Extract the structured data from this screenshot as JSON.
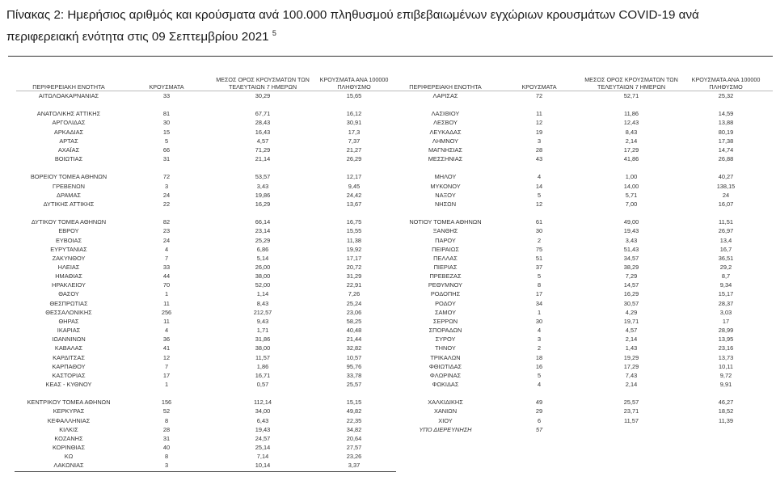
{
  "title": {
    "text": "Πίνακας 2:  Ημερήσιος αριθμός και κρούσματα ανά 100.000 πληθυσμού επιβεβαιωμένων εγχώριων κρουσμάτων COVID-19 ανά περιφερειακή ενότητα στις 09 Σεπτεμβρίου 2021",
    "footnote": "5"
  },
  "table": {
    "headers": [
      "ΠΕΡΙΦΕΡΕΙΑΚΗ ΕΝΟΤΗΤΑ",
      "ΚΡΟΥΣΜΑΤΑ",
      "ΜΕΣΟΣ ΟΡΟΣ ΚΡΟΥΣΜΑΤΩΝ ΤΩΝ ΤΕΛΕΥΤΑΙΩΝ 7 ΗΜΕΡΩΝ",
      "ΚΡΟΥΣΜΑΤΑ ΑΝΑ 100000 ΠΛΗΘΥΣΜΟ"
    ],
    "left": [
      [
        "ΑΙΤΩΛΟΑΚΑΡΝΑΝΙΑΣ",
        "33",
        "30,29",
        "15,65"
      ],
      [],
      [
        "ΑΝΑΤΟΛΙΚΗΣ ΑΤΤΙΚΗΣ",
        "81",
        "67,71",
        "16,12"
      ],
      [
        "ΑΡΓΟΛΙΔΑΣ",
        "30",
        "28,43",
        "30,91"
      ],
      [
        "ΑΡΚΑΔΙΑΣ",
        "15",
        "16,43",
        "17,3"
      ],
      [
        "ΑΡΤΑΣ",
        "5",
        "4,57",
        "7,37"
      ],
      [
        "ΑΧΑΪΑΣ",
        "66",
        "71,29",
        "21,27"
      ],
      [
        "ΒΟΙΩΤΙΑΣ",
        "31",
        "21,14",
        "26,29"
      ],
      [],
      [
        "ΒΟΡΕΙΟΥ ΤΟΜΕΑ ΑΘΗΝΩΝ",
        "72",
        "53,57",
        "12,17"
      ],
      [
        "ΓΡΕΒΕΝΩΝ",
        "3",
        "3,43",
        "9,45"
      ],
      [
        "ΔΡΑΜΑΣ",
        "24",
        "19,86",
        "24,42"
      ],
      [
        "ΔΥΤΙΚΗΣ ΑΤΤΙΚΗΣ",
        "22",
        "16,29",
        "13,67"
      ],
      [],
      [
        "ΔΥΤΙΚΟΥ ΤΟΜΕΑ ΑΘΗΝΩΝ",
        "82",
        "66,14",
        "16,75"
      ],
      [
        "ΕΒΡΟΥ",
        "23",
        "23,14",
        "15,55"
      ],
      [
        "ΕΥΒΟΙΑΣ",
        "24",
        "25,29",
        "11,38"
      ],
      [
        "ΕΥΡΥΤΑΝΙΑΣ",
        "4",
        "6,86",
        "19,92"
      ],
      [
        "ΖΑΚΥΝΘΟΥ",
        "7",
        "5,14",
        "17,17"
      ],
      [
        "ΗΛΕΙΑΣ",
        "33",
        "26,00",
        "20,72"
      ],
      [
        "ΗΜΑΘΙΑΣ",
        "44",
        "38,00",
        "31,29"
      ],
      [
        "ΗΡΑΚΛΕΙΟΥ",
        "70",
        "52,00",
        "22,91"
      ],
      [
        "ΘΑΣΟΥ",
        "1",
        "1,14",
        "7,26"
      ],
      [
        "ΘΕΣΠΡΩΤΙΑΣ",
        "11",
        "8,43",
        "25,24"
      ],
      [
        "ΘΕΣΣΑΛΟΝΙΚΗΣ",
        "256",
        "212,57",
        "23,06"
      ],
      [
        "ΘΗΡΑΣ",
        "11",
        "9,43",
        "58,25"
      ],
      [
        "ΙΚΑΡΙΑΣ",
        "4",
        "1,71",
        "40,48"
      ],
      [
        "ΙΩΑΝΝΙΝΩΝ",
        "36",
        "31,86",
        "21,44"
      ],
      [
        "ΚΑΒΑΛΑΣ",
        "41",
        "38,00",
        "32,82"
      ],
      [
        "ΚΑΡΔΙΤΣΑΣ",
        "12",
        "11,57",
        "10,57"
      ],
      [
        "ΚΑΡΠΑΘΟΥ",
        "7",
        "1,86",
        "95,76"
      ],
      [
        "ΚΑΣΤΟΡΙΑΣ",
        "17",
        "16,71",
        "33,78"
      ],
      [
        "ΚΕΑΣ - ΚΥΘΝΟΥ",
        "1",
        "0,57",
        "25,57"
      ],
      [],
      [
        "ΚΕΝΤΡΙΚΟΥ ΤΟΜΕΑ ΑΘΗΝΩΝ",
        "156",
        "112,14",
        "15,15"
      ],
      [
        "ΚΕΡΚΥΡΑΣ",
        "52",
        "34,00",
        "49,82"
      ],
      [
        "ΚΕΦΑΛΛΗΝΙΑΣ",
        "8",
        "6,43",
        "22,35"
      ],
      [
        "ΚΙΛΚΙΣ",
        "28",
        "19,43",
        "34,82"
      ],
      [
        "ΚΟΖΑΝΗΣ",
        "31",
        "24,57",
        "20,64"
      ],
      [
        "ΚΟΡΙΝΘΙΑΣ",
        "40",
        "25,14",
        "27,57"
      ],
      [
        "ΚΩ",
        "8",
        "7,14",
        "23,26"
      ],
      [
        "ΛΑΚΩΝΙΑΣ",
        "3",
        "10,14",
        "3,37"
      ]
    ],
    "right": [
      [
        "ΛΑΡΙΣΑΣ",
        "72",
        "52,71",
        "25,32"
      ],
      [],
      [
        "ΛΑΣΙΘΙΟΥ",
        "11",
        "11,86",
        "14,59"
      ],
      [
        "ΛΕΣΒΟΥ",
        "12",
        "12,43",
        "13,88"
      ],
      [
        "ΛΕΥΚΑΔΑΣ",
        "19",
        "8,43",
        "80,19"
      ],
      [
        "ΛΗΜΝΟΥ",
        "3",
        "2,14",
        "17,38"
      ],
      [
        "ΜΑΓΝΗΣΙΑΣ",
        "28",
        "17,29",
        "14,74"
      ],
      [
        "ΜΕΣΣΗΝΙΑΣ",
        "43",
        "41,86",
        "26,88"
      ],
      [],
      [
        "ΜΗΛΟΥ",
        "4",
        "1,00",
        "40,27"
      ],
      [
        "ΜΥΚΟΝΟΥ",
        "14",
        "14,00",
        "138,15"
      ],
      [
        "ΝΑΞΟΥ",
        "5",
        "5,71",
        "24"
      ],
      [
        "ΝΗΣΩΝ",
        "12",
        "7,00",
        "16,07"
      ],
      [],
      [
        "ΝΟΤΙΟΥ ΤΟΜΕΑ ΑΘΗΝΩΝ",
        "61",
        "49,00",
        "11,51"
      ],
      [
        "ΞΑΝΘΗΣ",
        "30",
        "19,43",
        "26,97"
      ],
      [
        "ΠΑΡΟΥ",
        "2",
        "3,43",
        "13,4"
      ],
      [
        "ΠΕΙΡΑΙΩΣ",
        "75",
        "51,43",
        "16,7"
      ],
      [
        "ΠΕΛΛΑΣ",
        "51",
        "34,57",
        "36,51"
      ],
      [
        "ΠΙΕΡΙΑΣ",
        "37",
        "38,29",
        "29,2"
      ],
      [
        "ΠΡΕΒΕΖΑΣ",
        "5",
        "7,29",
        "8,7"
      ],
      [
        "ΡΕΘΥΜΝΟΥ",
        "8",
        "14,57",
        "9,34"
      ],
      [
        "ΡΟΔΟΠΗΣ",
        "17",
        "16,29",
        "15,17"
      ],
      [
        "ΡΟΔΟΥ",
        "34",
        "30,57",
        "28,37"
      ],
      [
        "ΣΑΜΟΥ",
        "1",
        "4,29",
        "3,03"
      ],
      [
        "ΣΕΡΡΩΝ",
        "30",
        "19,71",
        "17"
      ],
      [
        "ΣΠΟΡΑΔΩΝ",
        "4",
        "4,57",
        "28,99"
      ],
      [
        "ΣΥΡΟΥ",
        "3",
        "2,14",
        "13,95"
      ],
      [
        "ΤΗΝΟΥ",
        "2",
        "1,43",
        "23,16"
      ],
      [
        "ΤΡΙΚΑΛΩΝ",
        "18",
        "19,29",
        "13,73"
      ],
      [
        "ΦΘΙΩΤΙΔΑΣ",
        "16",
        "17,29",
        "10,11"
      ],
      [
        "ΦΛΩΡΙΝΑΣ",
        "5",
        "7,43",
        "9,72"
      ],
      [
        "ΦΩΚΙΔΑΣ",
        "4",
        "2,14",
        "9,91"
      ],
      [],
      [
        "ΧΑΛΚΙΔΙΚΗΣ",
        "49",
        "25,57",
        "46,27"
      ],
      [
        "ΧΑΝΙΩΝ",
        "29",
        "23,71",
        "18,52"
      ],
      [
        "ΧΙΟΥ",
        "6",
        "11,57",
        "11,39"
      ],
      [
        "ΥΠΟ ΔΙΕΡΕΥΝΗΣΗ",
        "57",
        "",
        ""
      ]
    ]
  }
}
